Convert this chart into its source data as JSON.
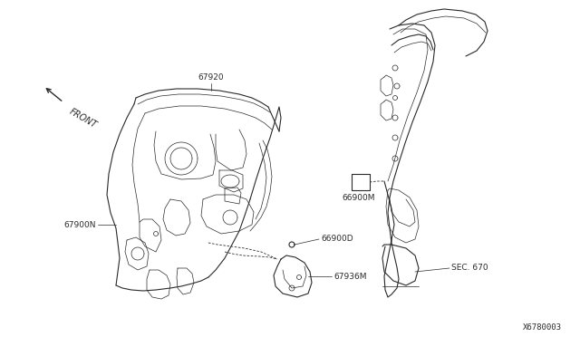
{
  "bg_color": "#ffffff",
  "line_color": "#2a2a2a",
  "fig_width": 6.4,
  "fig_height": 3.72,
  "dpi": 100,
  "label_fontsize": 6.5,
  "front_label": "FRONT",
  "labels_67920": "67920",
  "labels_67900N": "67900N",
  "labels_66900D": "66900D",
  "labels_67936M": "67936M",
  "labels_66900M": "66900M",
  "labels_sec670": "SEC. 670",
  "diagram_id": "X6780003"
}
